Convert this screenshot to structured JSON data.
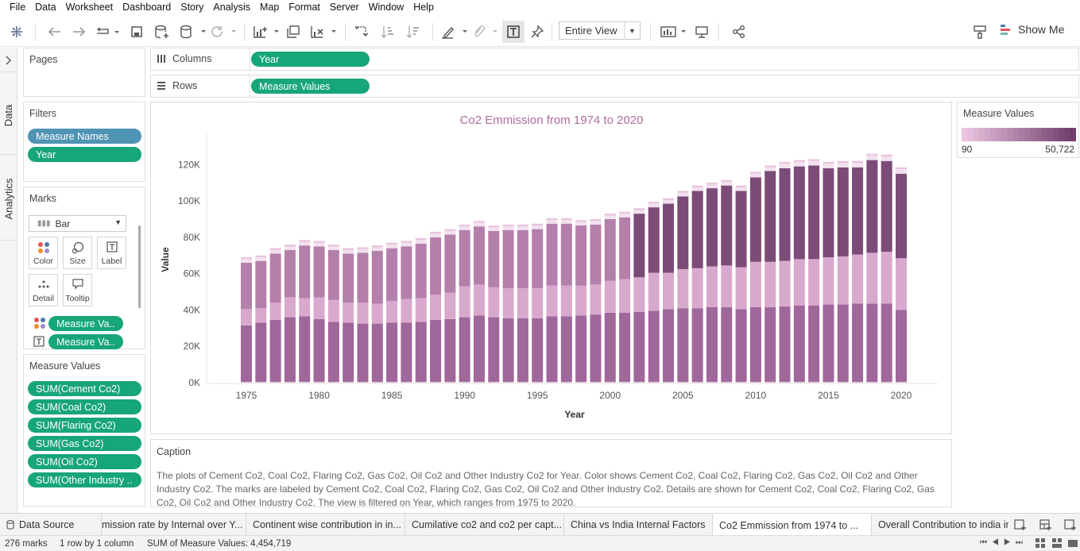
{
  "menu": [
    "File",
    "Data",
    "Worksheet",
    "Dashboard",
    "Story",
    "Analysis",
    "Map",
    "Format",
    "Server",
    "Window",
    "Help"
  ],
  "toolbar": {
    "view_select": "Entire View",
    "show_me": "Show Me"
  },
  "side_tabs": {
    "data": "Data",
    "analytics": "Analytics"
  },
  "pages": {
    "title": "Pages"
  },
  "filters": {
    "title": "Filters",
    "items": [
      "Measure Names",
      "Year"
    ]
  },
  "marks": {
    "title": "Marks",
    "type": "Bar",
    "buttons": [
      "Color",
      "Size",
      "Label",
      "Detail",
      "Tooltip"
    ],
    "fields": [
      "Measure Va..",
      "Measure Va.."
    ]
  },
  "measure_values": {
    "title": "Measure Values",
    "items": [
      "SUM(Cement Co2)",
      "SUM(Coal Co2)",
      "SUM(Flaring Co2)",
      "SUM(Gas Co2)",
      "SUM(Oil Co2)",
      "SUM(Other Industry .."
    ]
  },
  "shelves": {
    "columns_label": "Columns",
    "columns_pill": "Year",
    "rows_label": "Rows",
    "rows_pill": "Measure Values"
  },
  "legend": {
    "title": "Measure Values",
    "min": "90",
    "max": "50,722"
  },
  "colors": {
    "pill_green": "#17a57a",
    "pill_blue": "#4f93b5",
    "title": "#b06ea0",
    "bar_dark": "#7e4d79",
    "bar_light": "#e8c1dd"
  },
  "chart_data": {
    "type": "bar",
    "title": "Co2 Emmission from 1974 to 2020",
    "xlabel": "Year",
    "ylabel": "Value",
    "ylim": [
      0,
      135000
    ],
    "yticks": [
      "0K",
      "20K",
      "40K",
      "60K",
      "80K",
      "100K",
      "120K"
    ],
    "xticks": [
      "1975",
      "1980",
      "1985",
      "1990",
      "1995",
      "2000",
      "2005",
      "2010",
      "2015",
      "2020"
    ],
    "stacked": true,
    "x": [
      1975,
      1976,
      1977,
      1978,
      1979,
      1980,
      1981,
      1982,
      1983,
      1984,
      1985,
      1986,
      1987,
      1988,
      1989,
      1990,
      1991,
      1992,
      1993,
      1994,
      1995,
      1996,
      1997,
      1998,
      1999,
      2000,
      2001,
      2002,
      2003,
      2004,
      2005,
      2006,
      2007,
      2008,
      2009,
      2010,
      2011,
      2012,
      2013,
      2014,
      2015,
      2016,
      2017,
      2018,
      2019,
      2020
    ],
    "series": [
      {
        "values": [
          500,
          500,
          500,
          500,
          500,
          500,
          500,
          500,
          500,
          500,
          500,
          500,
          500,
          500,
          500,
          500,
          500,
          500,
          500,
          500,
          500,
          500,
          500,
          500,
          500,
          500,
          500,
          500,
          500,
          500,
          500,
          500,
          500,
          500,
          500,
          500,
          500,
          500,
          500,
          500,
          500,
          500,
          500,
          500,
          500,
          500
        ]
      },
      {
        "values": [
          31000,
          32500,
          34000,
          35500,
          36000,
          34500,
          33000,
          32500,
          32000,
          32000,
          32500,
          32500,
          33000,
          34000,
          34500,
          35500,
          36500,
          35500,
          35000,
          35000,
          35000,
          36000,
          36000,
          36500,
          37000,
          38000,
          38000,
          38500,
          39000,
          40000,
          40500,
          40500,
          41000,
          41000,
          40000,
          41000,
          41000,
          41500,
          42000,
          42000,
          42500,
          42500,
          43000,
          43000,
          43000,
          39500
        ]
      },
      {
        "values": [
          9000,
          8000,
          9500,
          11000,
          10000,
          12000,
          12000,
          11000,
          11500,
          11000,
          12000,
          13000,
          13000,
          14000,
          14500,
          17000,
          17000,
          16500,
          16500,
          16500,
          16500,
          17000,
          17000,
          16500,
          16500,
          17500,
          18500,
          19000,
          21000,
          20000,
          21500,
          22000,
          22500,
          23000,
          23000,
          25000,
          25000,
          25000,
          25500,
          25500,
          26000,
          26500,
          27000,
          28000,
          28500,
          28500
        ]
      },
      {
        "values": [
          25500,
          26000,
          27000,
          26000,
          29000,
          28000,
          27500,
          27000,
          27500,
          29000,
          29000,
          29000,
          30000,
          31500,
          32000,
          31000,
          32000,
          31000,
          32000,
          32000,
          32500,
          34000,
          34000,
          33000,
          33000,
          34000,
          34000,
          35000,
          36000,
          38000,
          40000,
          42500,
          43000,
          44000,
          42000,
          46500,
          50000,
          51000,
          51000,
          51500,
          49000,
          49000,
          48000,
          51000,
          50000,
          46500
        ]
      },
      {
        "values": [
          2000,
          2000,
          2000,
          2000,
          2000,
          2000,
          2000,
          2000,
          2000,
          2000,
          2000,
          2000,
          2000,
          2000,
          2000,
          2000,
          2000,
          2000,
          2000,
          2000,
          2000,
          2000,
          2000,
          2000,
          2000,
          2000,
          2000,
          2000,
          2000,
          2000,
          2000,
          2000,
          2000,
          2000,
          2000,
          2000,
          2000,
          2500,
          2500,
          2500,
          2500,
          2500,
          2500,
          2500,
          2500,
          2500
        ]
      },
      {
        "values": [
          1000,
          1000,
          1000,
          1000,
          1000,
          1000,
          1000,
          1000,
          1000,
          1000,
          1000,
          1000,
          1000,
          1000,
          1000,
          1000,
          1000,
          1000,
          1000,
          1000,
          1000,
          1000,
          1000,
          1000,
          1000,
          1000,
          1000,
          1000,
          1000,
          1000,
          1000,
          1000,
          1000,
          1000,
          1000,
          1000,
          1000,
          1000,
          1000,
          1000,
          1000,
          1000,
          1000,
          1000,
          1000,
          1000
        ]
      }
    ]
  },
  "caption": {
    "title": "Caption",
    "text": "The plots of Cement Co2, Coal Co2, Flaring Co2, Gas Co2, Oil Co2 and Other Industry Co2 for Year.  Color shows Cement Co2, Coal Co2, Flaring Co2, Gas Co2, Oil Co2 and Other Industry Co2.  The marks are labeled by Cement Co2, Coal Co2, Flaring Co2, Gas Co2, Oil Co2 and Other Industry Co2.  Details are shown for Cement Co2, Coal Co2, Flaring Co2, Gas Co2, Oil Co2 and Other Industry Co2. The view is filtered on Year, which ranges from 1975 to 2020."
  },
  "tabs": {
    "data_source": "Data Source",
    "sheets": [
      "mission rate by Internal over Y...",
      "Continent wise contribution in in...",
      "Cumilative co2 and co2 per capt...",
      "China vs India Internal Factors",
      "Co2 Emmission from 1974 to ...",
      "Overall Contribution to india in"
    ]
  },
  "status": {
    "marks": "276 marks",
    "rows_cols": "1 row by 1 column",
    "sum": "SUM of Measure Values: 4,454,719"
  }
}
